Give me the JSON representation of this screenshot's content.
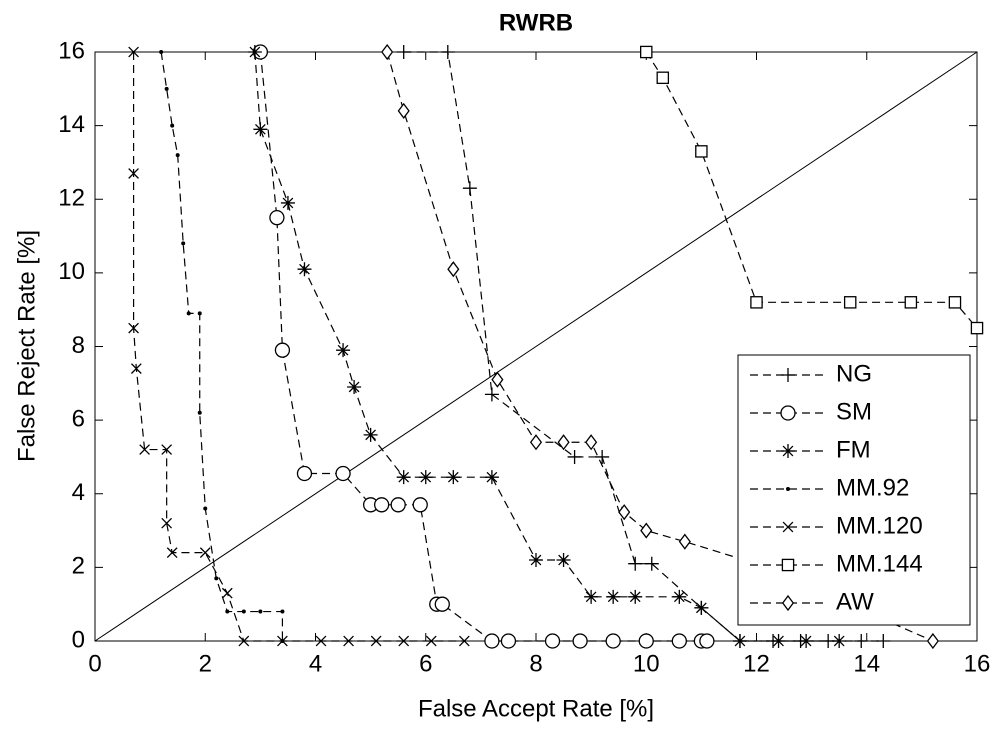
{
  "chart_data": {
    "type": "line",
    "title": "RWRB",
    "x_label": "False Accept Rate [%]",
    "y_label": "False Reject Rate [%]",
    "xlim": [
      0,
      16
    ],
    "ylim": [
      0,
      16
    ],
    "xticks": [
      0,
      2,
      4,
      6,
      8,
      10,
      12,
      14,
      16
    ],
    "yticks": [
      0,
      2,
      4,
      6,
      8,
      10,
      12,
      14,
      16
    ],
    "grid": false,
    "legend": "lower right",
    "diagonal": true,
    "series": [
      {
        "name": "NG",
        "color": "#000000",
        "marker": "+",
        "x": [
          5.6,
          6.4,
          6.8,
          7.2,
          8.7,
          9.2,
          9.8,
          10.1,
          11.0,
          11.7,
          12.3,
          12.8,
          13.3,
          13.9,
          14.3
        ],
        "values": [
          16,
          16,
          12.3,
          6.7,
          5.0,
          5.0,
          2.1,
          2.1,
          0.9,
          0,
          0,
          0,
          0,
          0,
          0
        ]
      },
      {
        "name": "SM",
        "color": "#000000",
        "marker": "o",
        "x": [
          3.0,
          3.3,
          3.4,
          3.8,
          4.5,
          5.0,
          5.2,
          5.5,
          5.9,
          6.2,
          6.3,
          7.2,
          7.5,
          8.3,
          8.8,
          9.4,
          10.0,
          10.6,
          11.0,
          11.1
        ],
        "values": [
          16,
          11.5,
          7.9,
          4.55,
          4.55,
          3.7,
          3.7,
          3.7,
          3.7,
          1.0,
          1.0,
          0,
          0,
          0,
          0,
          0,
          0,
          0,
          0,
          0
        ]
      },
      {
        "name": "FM",
        "color": "#000000",
        "marker": "*",
        "x": [
          2.9,
          3.0,
          3.5,
          3.8,
          4.5,
          4.7,
          5.0,
          5.6,
          6.0,
          6.5,
          7.2,
          8.0,
          8.5,
          9.0,
          9.4,
          9.8,
          10.6,
          11.0,
          11.7,
          12.4,
          12.9,
          13.5
        ],
        "values": [
          16,
          13.9,
          11.9,
          10.1,
          7.9,
          6.9,
          5.6,
          4.45,
          4.45,
          4.45,
          4.45,
          2.2,
          2.2,
          1.2,
          1.2,
          1.2,
          1.2,
          0.9,
          0,
          0,
          0,
          0
        ]
      },
      {
        "name": "MM.92",
        "color": "#000000",
        "marker": ".",
        "x": [
          1.2,
          1.3,
          1.4,
          1.5,
          1.6,
          1.7,
          1.9,
          1.9,
          2.0,
          2.2,
          2.4,
          2.7,
          3.0,
          3.4,
          3.4
        ],
        "values": [
          16,
          15,
          14,
          13.2,
          10.8,
          8.9,
          8.9,
          6.2,
          3.6,
          1.7,
          0.8,
          0.8,
          0.8,
          0.8,
          0
        ]
      },
      {
        "name": "MM.120",
        "color": "#000000",
        "marker": "x",
        "x": [
          0.7,
          0.7,
          0.7,
          0.75,
          0.9,
          1.3,
          1.3,
          1.4,
          2.0,
          2.4,
          2.7,
          3.4,
          4.1,
          4.6,
          5.1,
          5.6,
          6.1,
          6.7
        ],
        "values": [
          16,
          12.7,
          8.5,
          7.4,
          5.2,
          5.2,
          3.2,
          2.4,
          2.4,
          1.3,
          0,
          0,
          0,
          0,
          0,
          0,
          0,
          0
        ]
      },
      {
        "name": "MM.144",
        "color": "#000000",
        "marker": "s",
        "x": [
          10.0,
          10.3,
          11.0,
          12.0,
          13.7,
          14.8,
          15.6,
          16
        ],
        "values": [
          16,
          15.3,
          13.3,
          9.2,
          9.2,
          9.2,
          9.2,
          8.5
        ]
      },
      {
        "name": "AW",
        "color": "#000000",
        "marker": "d",
        "x": [
          5.3,
          5.6,
          6.5,
          7.3,
          8.0,
          8.5,
          9.0,
          9.6,
          10.0,
          10.7,
          12.0,
          15.2
        ],
        "values": [
          16,
          14.4,
          10.1,
          7.1,
          5.4,
          5.4,
          5.4,
          3.5,
          3.0,
          2.7,
          2.1,
          0
        ]
      }
    ]
  }
}
